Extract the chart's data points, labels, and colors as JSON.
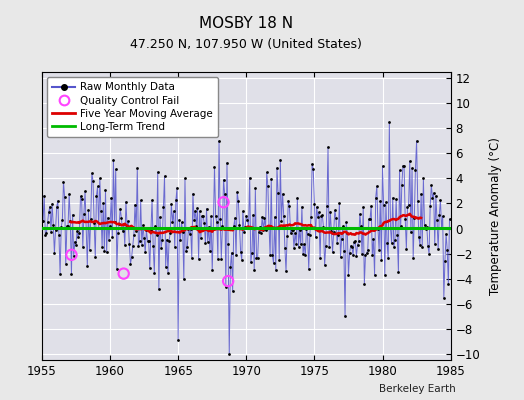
{
  "title": "MOSBY 18 N",
  "subtitle": "47.250 N, 107.950 W (United States)",
  "ylabel": "Temperature Anomaly (°C)",
  "attribution": "Berkeley Earth",
  "xlim": [
    1955,
    1985
  ],
  "ylim": [
    -10.5,
    12.5
  ],
  "yticks": [
    -10,
    -8,
    -6,
    -4,
    -2,
    0,
    2,
    4,
    6,
    8,
    10,
    12
  ],
  "xticks": [
    1955,
    1960,
    1965,
    1970,
    1975,
    1980,
    1985
  ],
  "bg_color": "#e8e8e8",
  "plot_bg_color": "#e0e0e8",
  "grid_color": "#ffffff",
  "line_color": "#5555cc",
  "raw_dot_color": "#000000",
  "ma_color": "#dd0000",
  "trend_color": "#00bb00",
  "qc_color": "#ff44ff",
  "seed": 137,
  "start_year": 1955,
  "end_year": 1984,
  "qc_fail_points": [
    {
      "year": 1957.17,
      "value": -2.1
    },
    {
      "year": 1961.0,
      "value": -3.6
    },
    {
      "year": 1968.33,
      "value": 2.1
    },
    {
      "year": 1968.67,
      "value": -4.2
    }
  ],
  "trend_value": 0.05
}
